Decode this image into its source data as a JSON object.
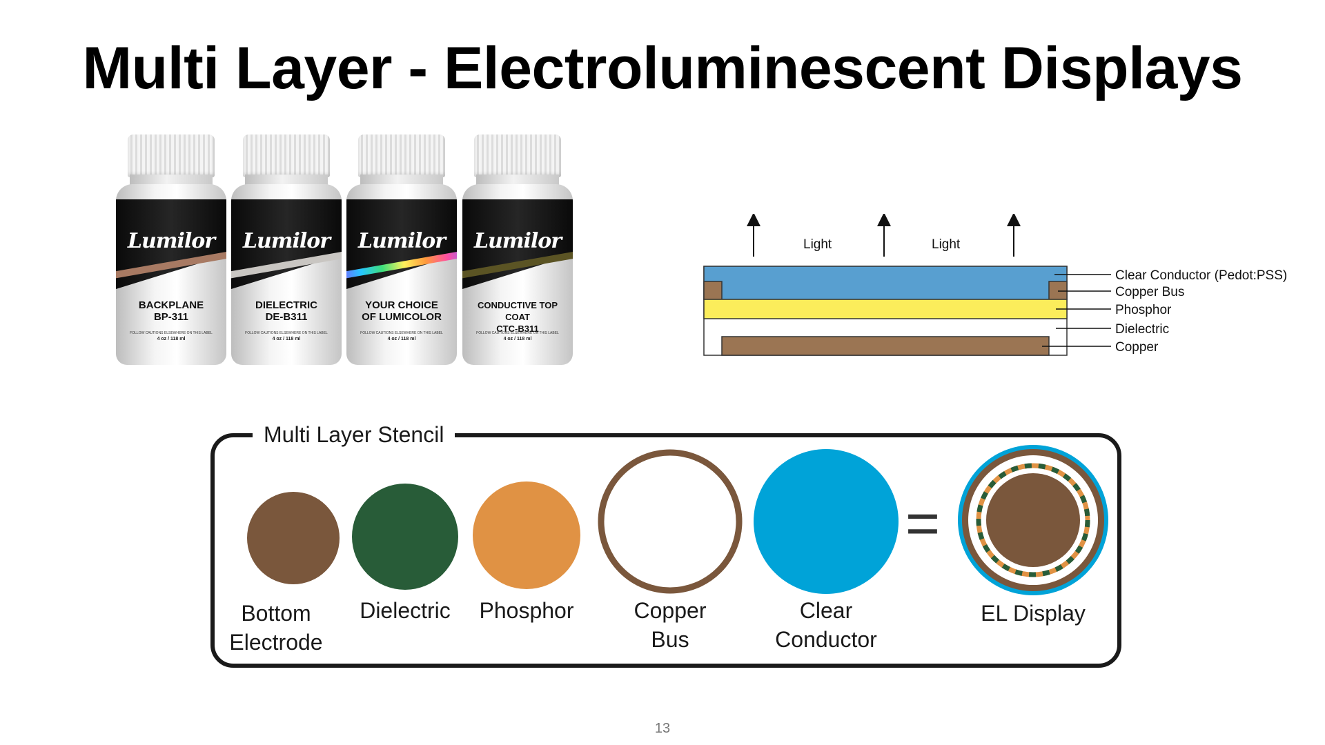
{
  "title": "Multi Layer - Electroluminescent Displays",
  "bottles": [
    {
      "logo": "Lumilor",
      "line1": "BACKPLANE",
      "line2": "BP-311",
      "fine": "FOLLOW CAUTIONS ELSEWHERE ON THIS LABEL",
      "size": "4 oz / 118 ml",
      "stripe_color": "#a87a63"
    },
    {
      "logo": "Lumilor",
      "line1": "DIELECTRIC",
      "line2": "DE-B311",
      "fine": "FOLLOW CAUTIONS ELSEWHERE ON THIS LABEL",
      "size": "4 oz / 118 ml",
      "stripe_color": "#c9c6c2"
    },
    {
      "logo": "Lumilor",
      "line1": "YOUR CHOICE",
      "line2": "OF LUMICOLOR",
      "fine": "FOLLOW CAUTIONS ELSEWHERE ON THIS LABEL",
      "size": "4 oz / 118 ml",
      "stripe_color": "rainbow"
    },
    {
      "logo": "Lumilor",
      "line1": "CONDUCTIVE TOP COAT",
      "line2": "CTC-B311",
      "fine": "FOLLOW CAUTIONS ELSEWHERE ON THIS LABEL",
      "size": "4 oz / 118 ml",
      "stripe_color": "#5b5424"
    }
  ],
  "layer_diagram": {
    "light_labels": [
      "Light",
      "Light"
    ],
    "layers": [
      "Clear Conductor (Pedot:PSS)",
      "Copper Bus",
      "Phosphor",
      "Dielectric",
      "Copper"
    ],
    "colors": {
      "clear_conductor": "#589fd0",
      "copper": "#9b7553",
      "phosphor": "#fbed5b",
      "dielectric": "#ffffff"
    }
  },
  "stencil": {
    "title": "Multi Layer Stencil",
    "items": [
      {
        "label": "Bottom\nElectrode",
        "color": "#7a573c"
      },
      {
        "label": "Dielectric",
        "color": "#285c38"
      },
      {
        "label": "Phosphor",
        "color": "#e09244"
      },
      {
        "label": "Copper\nBus",
        "color": "#7a573c"
      },
      {
        "label": "Clear\nConductor",
        "color": "#00a3d8"
      }
    ],
    "equals": "=",
    "result_label": "EL Display"
  },
  "page_number": "13"
}
